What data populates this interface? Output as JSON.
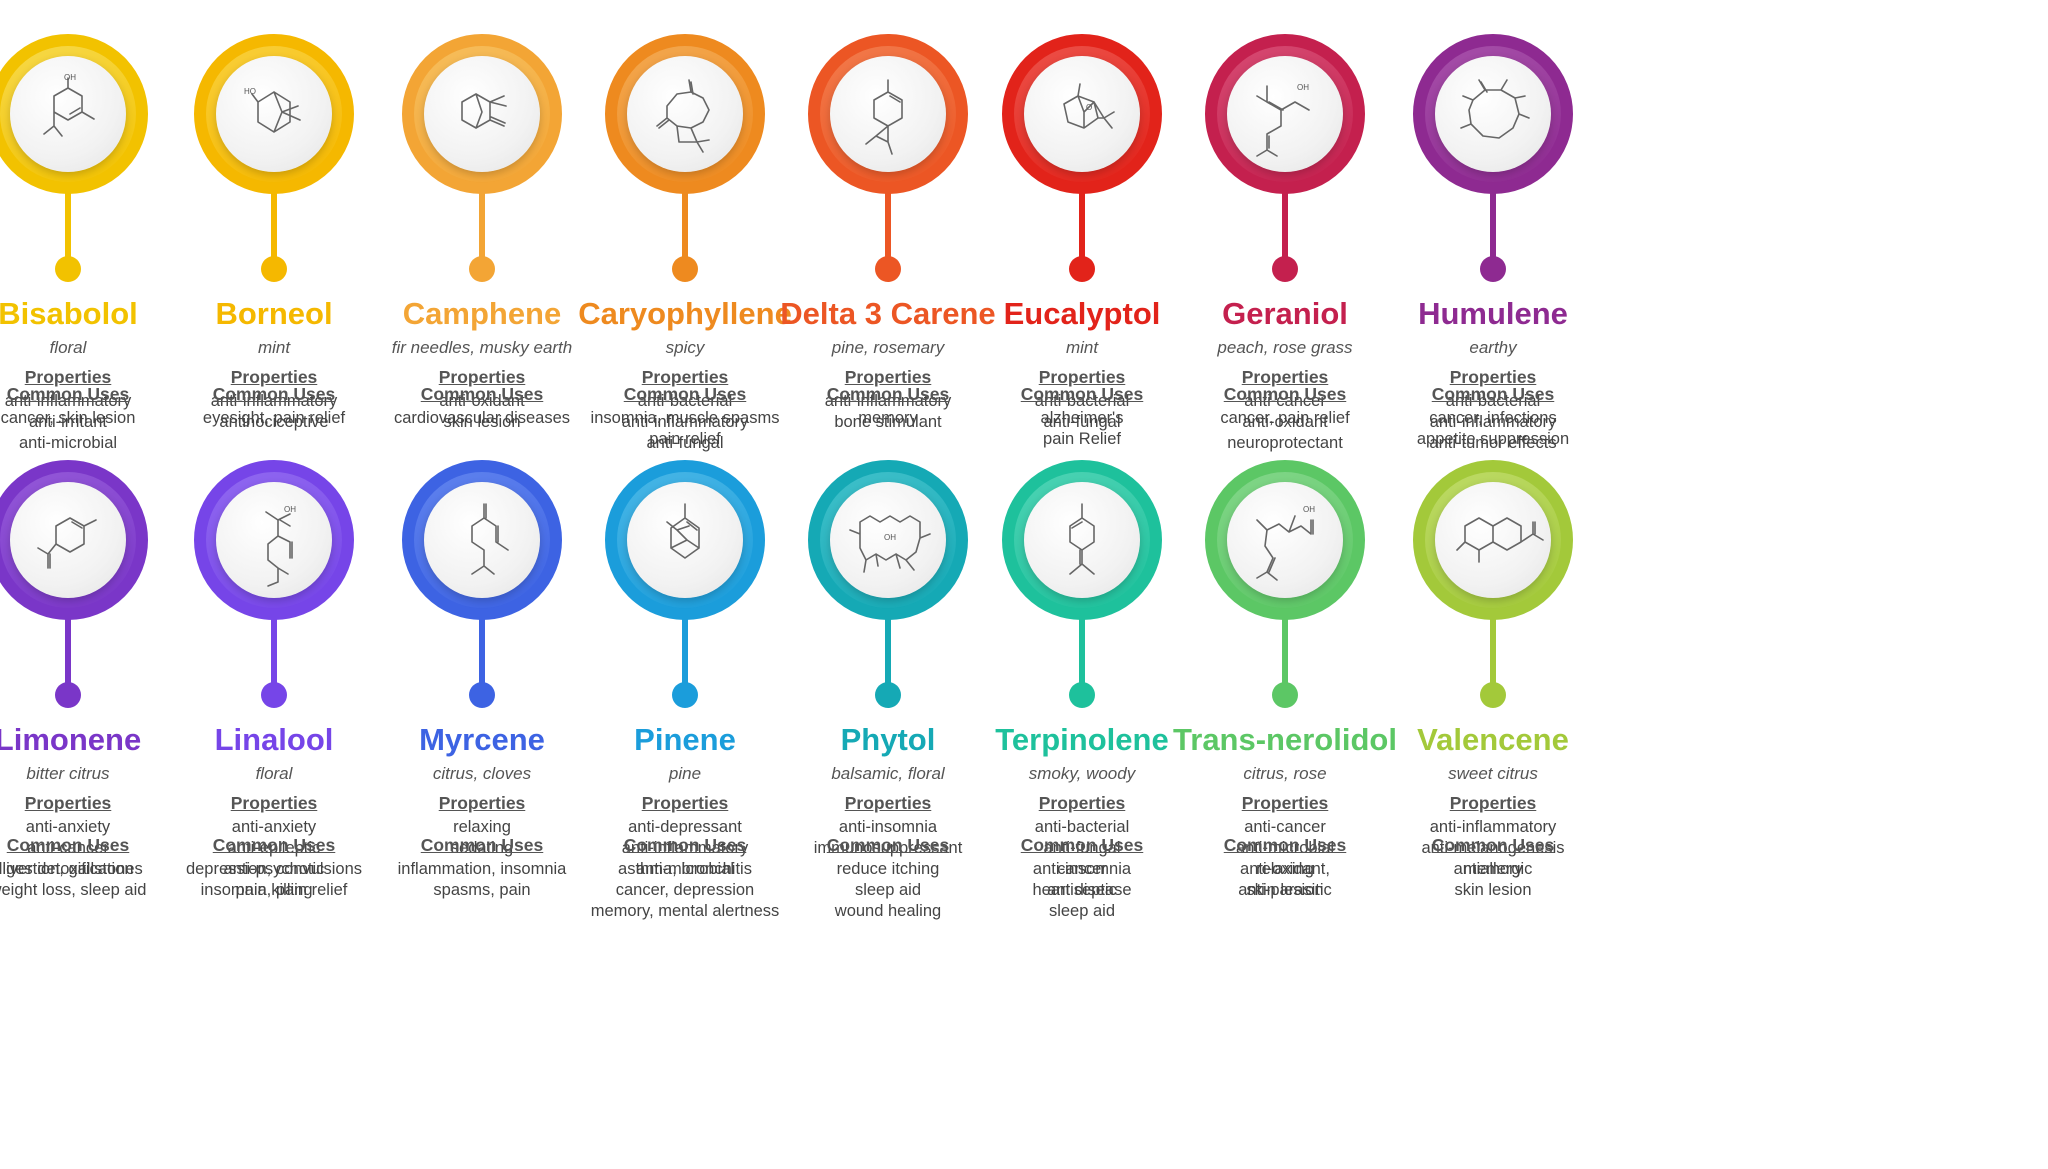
{
  "cards": [
    {
      "name": "Bisabolol",
      "aroma": "floral",
      "properties": [
        "anti-inflammatory",
        "anti-irritant",
        "anti-microbial"
      ],
      "uses": [
        "cancer, skin lesion"
      ],
      "color": "#F2C200",
      "color2": "#F7D94A",
      "molecule": "bisabolol",
      "labels": [
        "OH"
      ]
    },
    {
      "name": "Borneol",
      "aroma": "mint",
      "properties": [
        "anti-inflammatory",
        "antinociceptive"
      ],
      "uses": [
        "eyesight, pain relief"
      ],
      "color": "#F5B800",
      "color2": "#F9CF3A",
      "molecule": "borneol",
      "labels": [
        "HO"
      ]
    },
    {
      "name": "Camphene",
      "aroma": "fir needles, musky earth",
      "properties": [
        "anti-oxidant",
        "skin lesion"
      ],
      "uses": [
        "cardiovascular diseases"
      ],
      "color": "#F3A535",
      "color2": "#F6BE5C",
      "molecule": "camphene",
      "labels": []
    },
    {
      "name": "Caryophyllene",
      "aroma": "spicy",
      "properties": [
        "anti-bacterial",
        "anti-inflammatory",
        "anti-fungal"
      ],
      "uses": [
        "insomnia, muscle spasms",
        "pain relief"
      ],
      "color": "#EE8A1F",
      "color2": "#F3A850",
      "molecule": "caryophyllene",
      "labels": []
    },
    {
      "name": "Delta 3 Carene",
      "aroma": "pine, rosemary",
      "properties": [
        "anti-inflammatory",
        "bone stimulant"
      ],
      "uses": [
        "memory"
      ],
      "color": "#EC5624",
      "color2": "#F27A4B",
      "molecule": "carene",
      "labels": []
    },
    {
      "name": "Eucalyptol",
      "aroma": "mint",
      "properties": [
        "anti-bacterial",
        "anti-fungal"
      ],
      "uses": [
        "alzheimer's",
        "pain Relief"
      ],
      "color": "#E2231A",
      "color2": "#EC5048",
      "molecule": "eucalyptol",
      "labels": [
        "O"
      ]
    },
    {
      "name": "Geraniol",
      "aroma": "peach, rose grass",
      "properties": [
        "anti-cancer",
        "anti-oxidant",
        "neuroprotectant"
      ],
      "uses": [
        "cancer, pain relief"
      ],
      "color": "#C4204E",
      "color2": "#D64A72",
      "molecule": "geraniol",
      "labels": [
        "OH"
      ]
    },
    {
      "name": "Humulene",
      "aroma": "earthy",
      "properties": [
        "anti-bacterial",
        "anti-inflammatory",
        "anti-tumor effects"
      ],
      "uses": [
        "cancer, infections",
        "appetite suppression"
      ],
      "color": "#8E2A91",
      "color2": "#A64FA9",
      "molecule": "humulene",
      "labels": []
    },
    {
      "name": "Limonene",
      "aroma": "bitter citrus",
      "properties": [
        "anti-anxiety",
        "anti-cancer",
        "digestion, gallstones"
      ],
      "uses": [
        "liver detoxification",
        "weight loss, sleep aid"
      ],
      "color": "#7A36C8",
      "color2": "#9358D8",
      "molecule": "limonene",
      "labels": []
    },
    {
      "name": "Linalool",
      "aroma": "floral",
      "properties": [
        "anti-anxiety",
        "anti-epileptic",
        "anti-psychotic",
        "pain killing"
      ],
      "uses": [
        "depression, convulsions",
        "insomnia, pain relief"
      ],
      "color": "#7645E8",
      "color2": "#9068F0",
      "molecule": "linalool",
      "labels": [
        "OH"
      ]
    },
    {
      "name": "Myrcene",
      "aroma": "citrus, cloves",
      "properties": [
        "relaxing",
        "sedating"
      ],
      "uses": [
        "inflammation,  insomnia",
        "spasms, pain"
      ],
      "color": "#3D63E3",
      "color2": "#5F82EE",
      "molecule": "myrcene",
      "labels": []
    },
    {
      "name": "Pinene",
      "aroma": "pine",
      "properties": [
        "anti-depressant",
        "anti-inflammatory",
        "anti-microbial"
      ],
      "uses": [
        "asthma, bronchitis",
        "cancer, depression",
        "memory, mental alertness"
      ],
      "color": "#1B9DDB",
      "color2": "#48B6E6",
      "molecule": "pinene",
      "labels": []
    },
    {
      "name": "Phytol",
      "aroma": "balsamic, floral",
      "properties": [
        "anti-insomnia",
        "immunosuppressant"
      ],
      "uses": [
        "reduce itching",
        "sleep aid",
        "wound healing"
      ],
      "color": "#15A9B5",
      "color2": "#40C0CA",
      "molecule": "phytol",
      "labels": [
        "OH"
      ]
    },
    {
      "name": "Terpinolene",
      "aroma": "smoky, woody",
      "properties": [
        "anti-bacterial",
        "anti-fungal",
        "anti-insomnia",
        "antiseptic"
      ],
      "uses": [
        "cancer",
        "heart disease",
        "sleep aid"
      ],
      "color": "#1EC19C",
      "color2": "#4DD3B4",
      "molecule": "terpinolene",
      "labels": []
    },
    {
      "name": "Trans-nerolidol",
      "aroma": "citrus, rose",
      "properties": [
        "anti-cancer",
        "anti-microbial",
        "anti-oxidant,",
        "anti-parasitic"
      ],
      "uses": [
        "relaxing",
        "skin lesion"
      ],
      "color": "#5CC765",
      "color2": "#82D689",
      "molecule": "nerolidol",
      "labels": [
        "OH"
      ]
    },
    {
      "name": "Valencene",
      "aroma": "sweet citrus",
      "properties": [
        "anti-inflammatory",
        "anti-melanogenesis",
        "antiallergic"
      ],
      "uses": [
        "memory",
        "skin lesion"
      ],
      "color": "#A3C93A",
      "color2": "#BDDA66",
      "molecule": "valencene",
      "labels": []
    }
  ],
  "headings": {
    "properties": "Properties",
    "uses": "Common Uses"
  }
}
